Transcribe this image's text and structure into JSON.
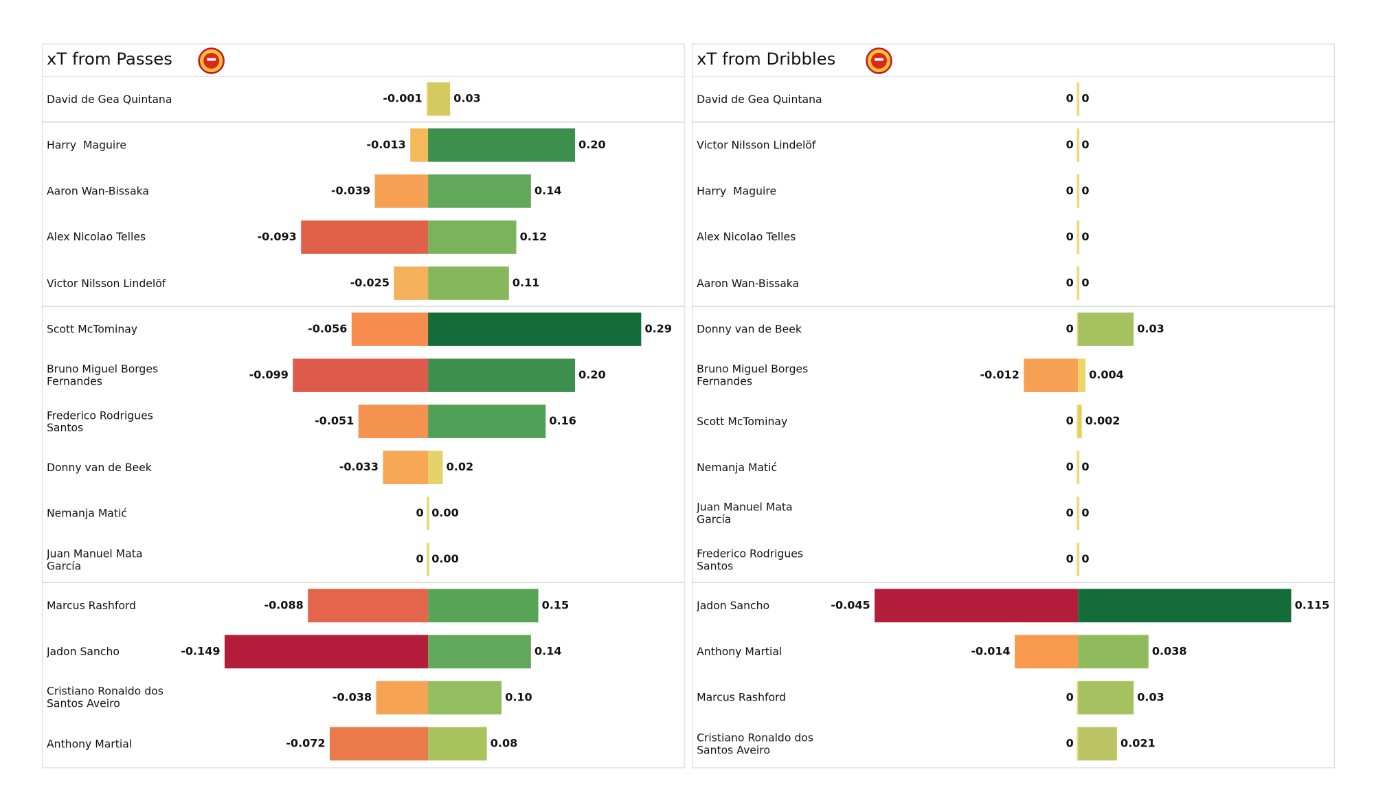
{
  "chart_data": [
    {
      "type": "diverging-bar",
      "title": "xT from Passes",
      "categories": [
        "David de Gea Quintana",
        "Harry  Maguire",
        "Aaron Wan-Bissaka",
        "Alex Nicolao Telles",
        "Victor Nilsson Lindelöf",
        "Scott McTominay",
        "Bruno Miguel Borges Fernandes",
        "Frederico Rodrigues Santos",
        "Donny van de Beek",
        "Nemanja Matić",
        "Juan Manuel Mata García",
        "Marcus Rashford",
        "Jadon Sancho",
        "Cristiano Ronaldo dos Santos Aveiro",
        "Anthony Martial"
      ],
      "series": [
        {
          "values": [
            -0.001,
            -0.013,
            -0.039,
            -0.093,
            -0.025,
            -0.056,
            -0.099,
            -0.051,
            -0.033,
            0,
            0,
            -0.088,
            -0.149,
            -0.038,
            -0.072
          ],
          "value_labels": [
            "-0.001",
            "-0.013",
            "-0.039",
            "-0.093",
            "-0.025",
            "-0.056",
            "-0.099",
            "-0.051",
            "-0.033",
            "0",
            "0",
            "-0.088",
            "-0.149",
            "-0.038",
            "-0.072"
          ],
          "colors": [
            "#f0d060",
            "#f5b95a",
            "#f6a053",
            "#e0604a",
            "#f4b05a",
            "#f68d4f",
            "#de5a4b",
            "#f5924f",
            "#f6a855",
            "#f0d878",
            "#f0d878",
            "#e4654b",
            "#b41c3c",
            "#f6a353",
            "#ec7b4c"
          ]
        },
        {
          "values": [
            0.03,
            0.2,
            0.14,
            0.12,
            0.11,
            0.29,
            0.2,
            0.16,
            0.02,
            0,
            0,
            0.15,
            0.14,
            0.1,
            0.08
          ],
          "value_labels": [
            "0.03",
            "0.20",
            "0.14",
            "0.12",
            "0.11",
            "0.29",
            "0.20",
            "0.16",
            "0.02",
            "0.00",
            "0.00",
            "0.15",
            "0.14",
            "0.10",
            "0.08"
          ],
          "colors": [
            "#d4c95e",
            "#3d8f4e",
            "#62a85a",
            "#7ab35b",
            "#86b75c",
            "#146c38",
            "#3d8f4e",
            "#50a057",
            "#e3d36a",
            "#e8d878",
            "#e8d878",
            "#58a457",
            "#62a85a",
            "#93bd5e",
            "#a8c25e"
          ]
        }
      ]
    },
    {
      "type": "diverging-bar",
      "title": "xT from Dribbles",
      "categories": [
        "David de Gea Quintana",
        "Victor Nilsson Lindelöf",
        "Harry  Maguire",
        "Alex Nicolao Telles",
        "Aaron Wan-Bissaka",
        "Donny van de Beek",
        "Bruno Miguel Borges Fernandes",
        "Scott McTominay",
        "Nemanja Matić",
        "Juan Manuel Mata García",
        "Frederico Rodrigues Santos",
        "Jadon Sancho",
        "Anthony Martial",
        "Marcus Rashford",
        "Cristiano Ronaldo dos Santos Aveiro"
      ],
      "series": [
        {
          "values": [
            0,
            0,
            0,
            0,
            0,
            0,
            -0.012,
            0,
            0,
            0,
            0,
            -0.045,
            -0.014,
            0,
            0
          ],
          "colors": [
            "#f0d878",
            "#f0d878",
            "#f0d878",
            "#f0d878",
            "#f0d878",
            "#f0d878",
            "#f6a053",
            "#f0d878",
            "#f0d878",
            "#f0d878",
            "#f0d878",
            "#b41c3c",
            "#f79a4e",
            "#f0d878",
            "#f0d878"
          ]
        },
        {
          "values": [
            0,
            0,
            0,
            0,
            0,
            0.03,
            0.004,
            0.002,
            0,
            0,
            0,
            0.115,
            0.038,
            0.03,
            0.021
          ],
          "colors": [
            "#e8d878",
            "#e8d878",
            "#e8d878",
            "#e8d878",
            "#e8d878",
            "#a5c160",
            "#ecd66a",
            "#e6cf58",
            "#e8d878",
            "#e8d878",
            "#e8d878",
            "#146c38",
            "#8fbb5d",
            "#a5c160",
            "#bcc563"
          ]
        }
      ]
    }
  ]
}
